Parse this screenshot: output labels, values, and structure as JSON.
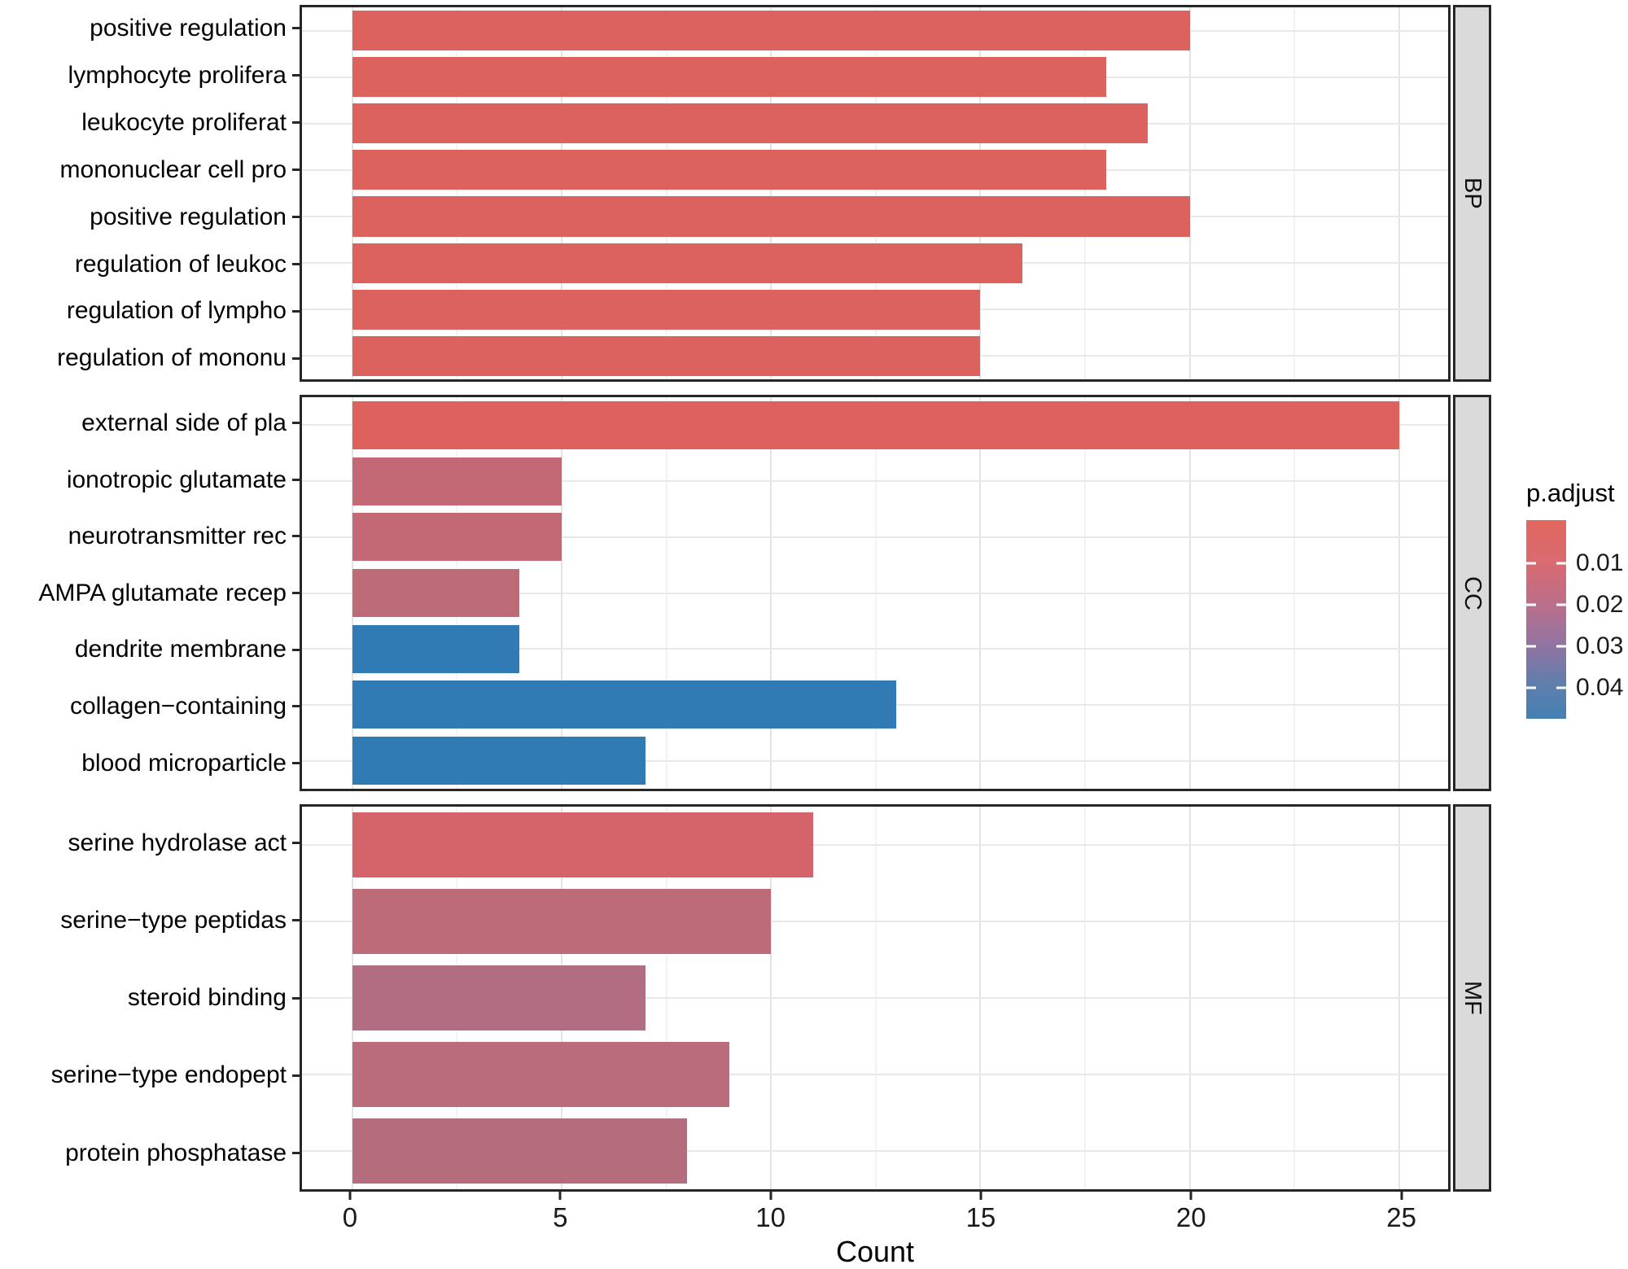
{
  "chart_data": {
    "type": "bar",
    "orientation": "horizontal",
    "title": "",
    "xlabel": "Count",
    "ylabel": "",
    "xlim": [
      0,
      25
    ],
    "x_ticks": [
      0,
      5,
      10,
      15,
      20,
      25
    ],
    "x_minor_gridlines": [
      2.5,
      7.5,
      12.5,
      17.5,
      22.5
    ],
    "grid": true,
    "legend": {
      "title": "p.adjust",
      "position": "right",
      "ticks": [
        "0.01",
        "0.02",
        "0.03",
        "0.04"
      ],
      "gradient_top_color": "#E2675F",
      "gradient_bottom_color": "#447FB3",
      "gradient_stops": [
        "#E2675F",
        "#D96A71",
        "#B96F8B",
        "#8F74A3",
        "#597FAD",
        "#447FB3"
      ]
    },
    "facets": [
      {
        "label": "BP",
        "rows": [
          {
            "label": "positive regulation",
            "value": 20,
            "color": "#DC625E"
          },
          {
            "label": "lymphocyte prolifera",
            "value": 18,
            "color": "#DC625E"
          },
          {
            "label": "leukocyte proliferat",
            "value": 19,
            "color": "#DC625E"
          },
          {
            "label": "mononuclear cell pro",
            "value": 18,
            "color": "#DC625E"
          },
          {
            "label": "positive regulation",
            "value": 20,
            "color": "#DC625E"
          },
          {
            "label": "regulation of leukoc",
            "value": 16,
            "color": "#DC625E"
          },
          {
            "label": "regulation of lympho",
            "value": 15,
            "color": "#DC625E"
          },
          {
            "label": "regulation of mononu",
            "value": 15,
            "color": "#DC625E"
          }
        ]
      },
      {
        "label": "CC",
        "rows": [
          {
            "label": "external side of pla",
            "value": 25,
            "color": "#DD625E"
          },
          {
            "label": "ionotropic glutamate",
            "value": 5,
            "color": "#C26975"
          },
          {
            "label": "neurotransmitter rec",
            "value": 5,
            "color": "#C26975"
          },
          {
            "label": "AMPA glutamate recep",
            "value": 4,
            "color": "#BE6B78"
          },
          {
            "label": "dendrite membrane",
            "value": 4,
            "color": "#317BB5"
          },
          {
            "label": "collagen−containing",
            "value": 13,
            "color": "#317BB5"
          },
          {
            "label": "blood microparticle",
            "value": 7,
            "color": "#317BB5"
          }
        ]
      },
      {
        "label": "MF",
        "rows": [
          {
            "label": "serine hydrolase act",
            "value": 11,
            "color": "#D4636A"
          },
          {
            "label": "serine−type peptidas",
            "value": 10,
            "color": "#BD6B78"
          },
          {
            "label": "steroid binding",
            "value": 7,
            "color": "#B16E82"
          },
          {
            "label": "serine−type endopept",
            "value": 9,
            "color": "#B96C7B"
          },
          {
            "label": "protein phosphatase",
            "value": 8,
            "color": "#B56D7E"
          }
        ]
      }
    ]
  }
}
